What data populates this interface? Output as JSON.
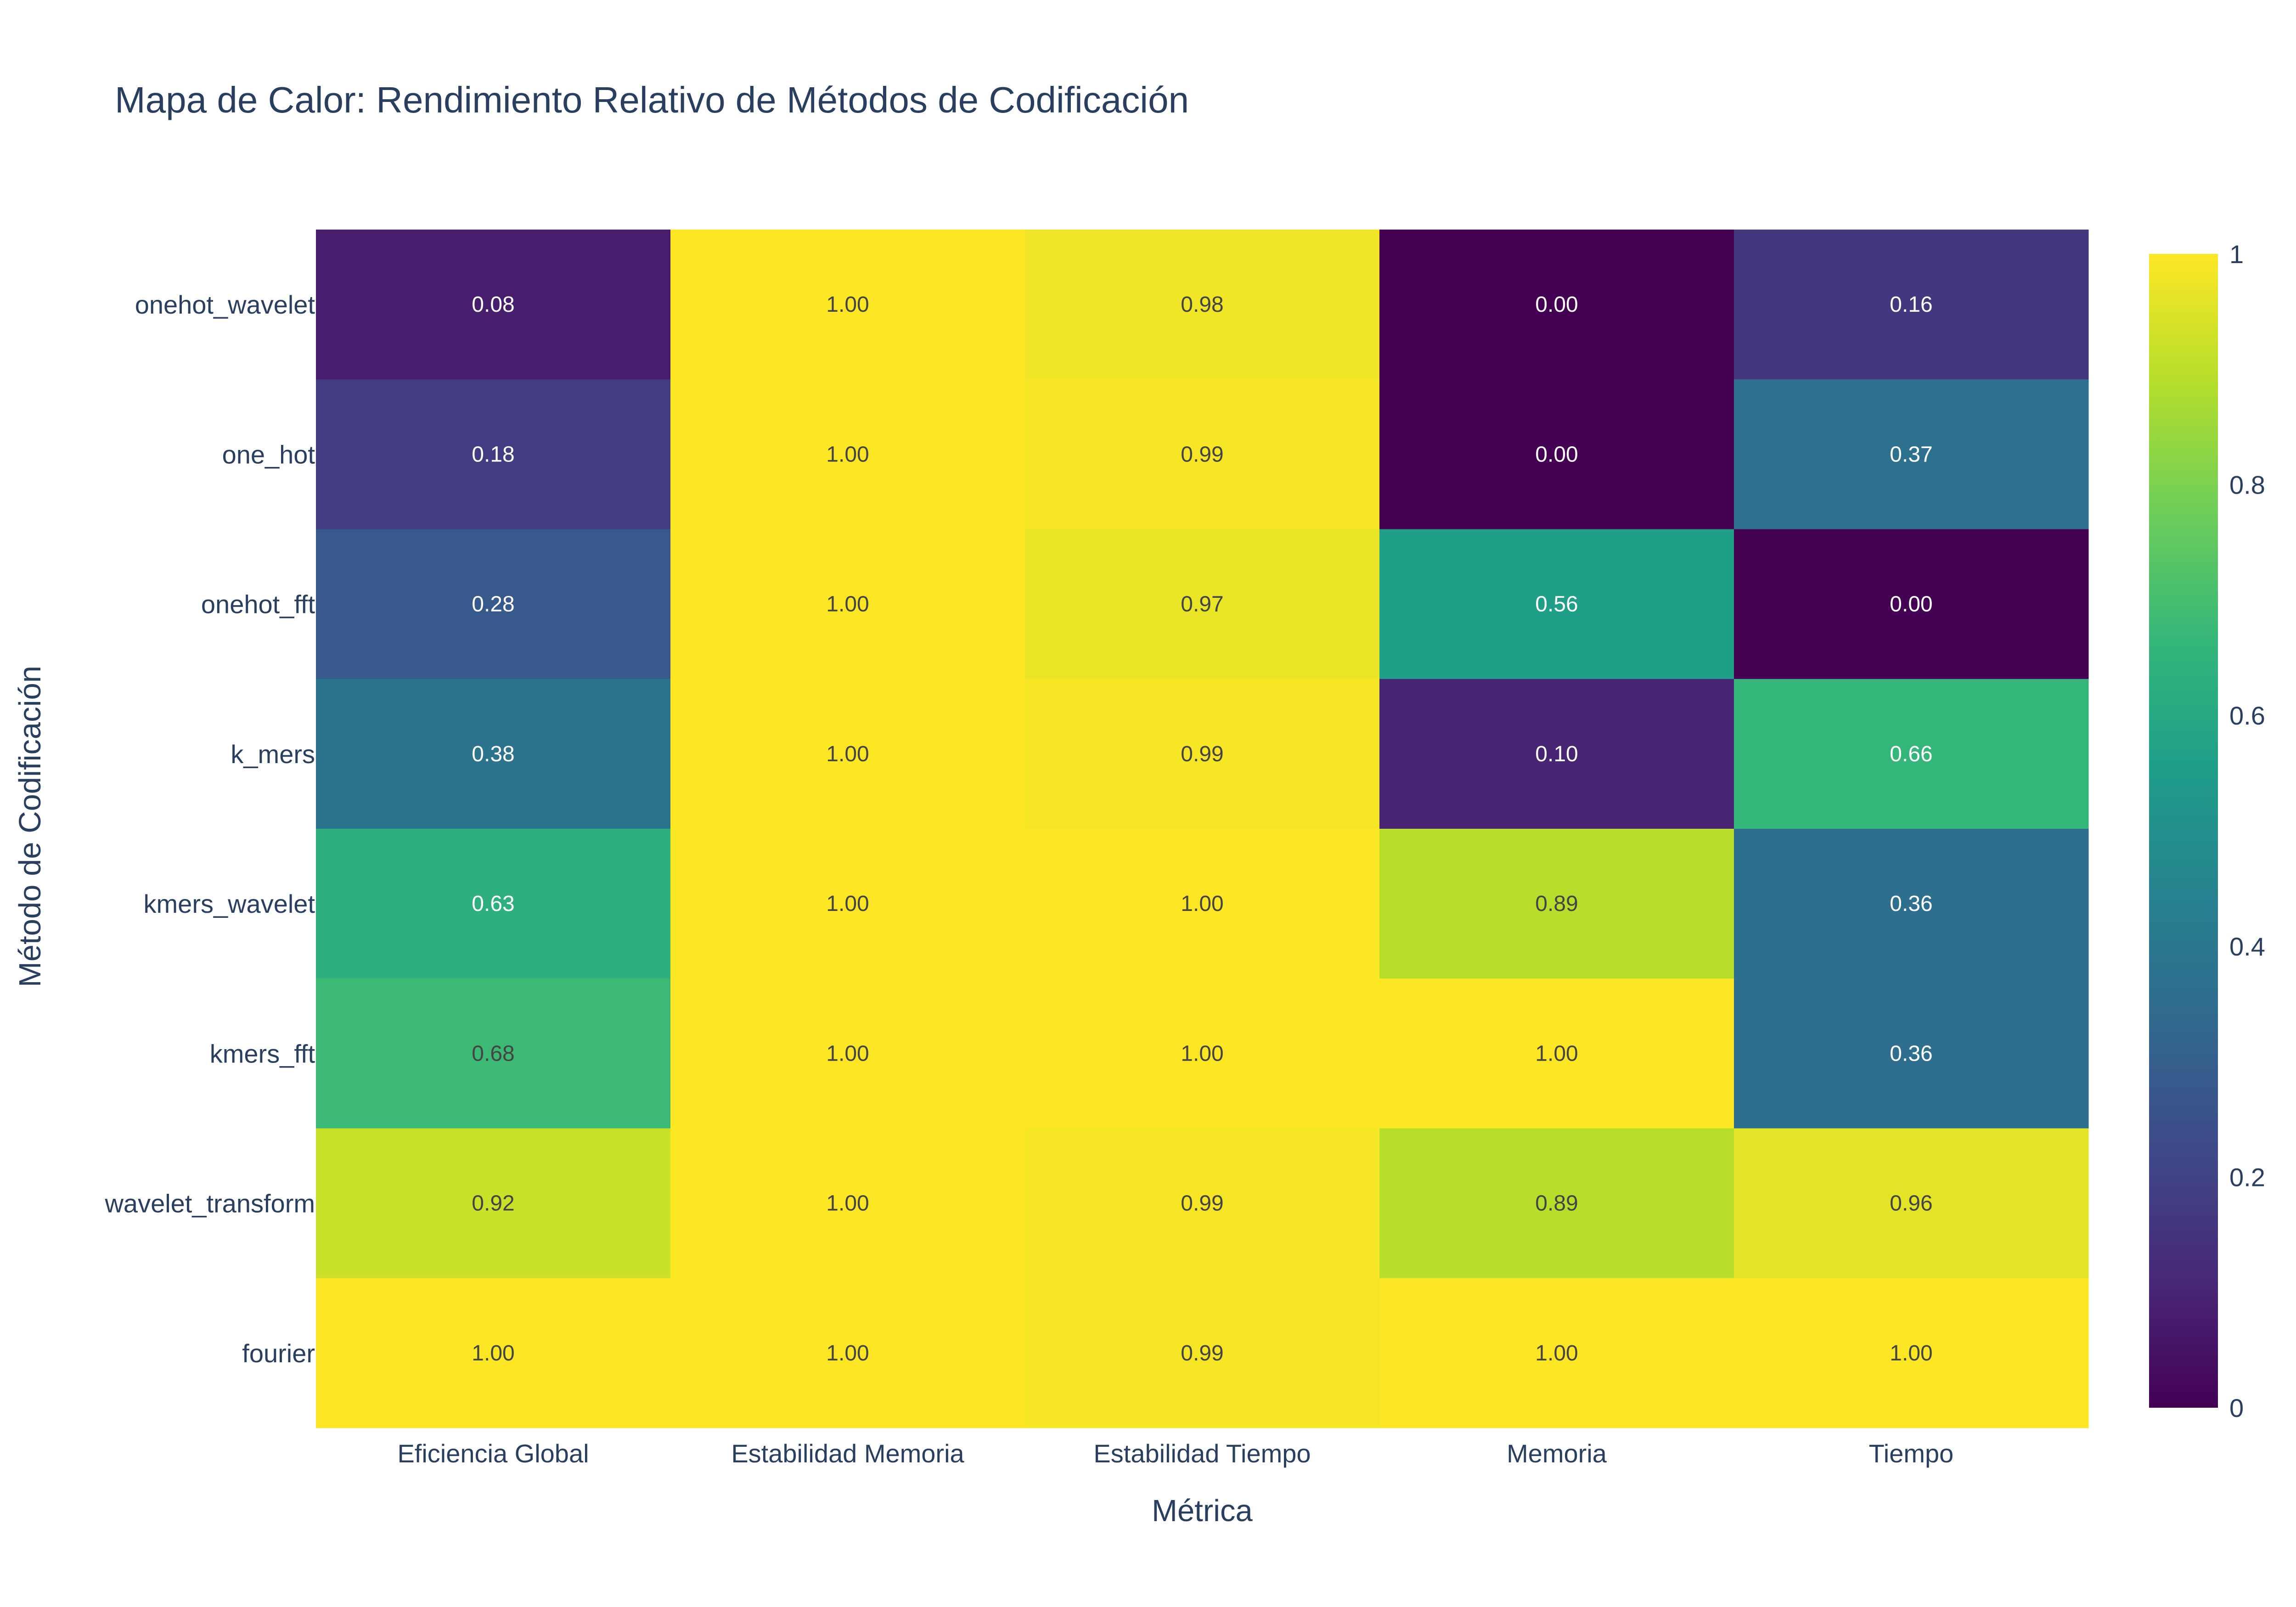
{
  "chart_data": {
    "type": "heatmap",
    "title": "Mapa de Calor: Rendimiento Relativo de Métodos de Codificación",
    "xlabel": "Métrica",
    "ylabel": "Método de Codificación",
    "x": [
      "Eficiencia Global",
      "Estabilidad Memoria",
      "Estabilidad Tiempo",
      "Memoria",
      "Tiempo"
    ],
    "y": [
      "onehot_wavelet",
      "one_hot",
      "onehot_fft",
      "k_mers",
      "kmers_wavelet",
      "kmers_fft",
      "wavelet_transform",
      "fourier"
    ],
    "z": [
      [
        0.08,
        1.0,
        0.98,
        0.0,
        0.16
      ],
      [
        0.18,
        1.0,
        0.99,
        0.0,
        0.37
      ],
      [
        0.28,
        1.0,
        0.97,
        0.56,
        0.0
      ],
      [
        0.38,
        1.0,
        0.99,
        0.1,
        0.66
      ],
      [
        0.63,
        1.0,
        1.0,
        0.89,
        0.36
      ],
      [
        0.68,
        1.0,
        1.0,
        1.0,
        0.36
      ],
      [
        0.92,
        1.0,
        0.99,
        0.89,
        0.96
      ],
      [
        1.0,
        1.0,
        0.99,
        1.0,
        1.0
      ]
    ],
    "value_format": "0.00",
    "colorscale": "Viridis",
    "zlim": [
      0,
      1
    ],
    "colorbar": {
      "ticks": [
        0,
        0.2,
        0.4,
        0.6,
        0.8,
        1
      ],
      "tick_labels": [
        "0",
        "0.2",
        "0.4",
        "0.6",
        "0.8",
        "1"
      ]
    }
  }
}
